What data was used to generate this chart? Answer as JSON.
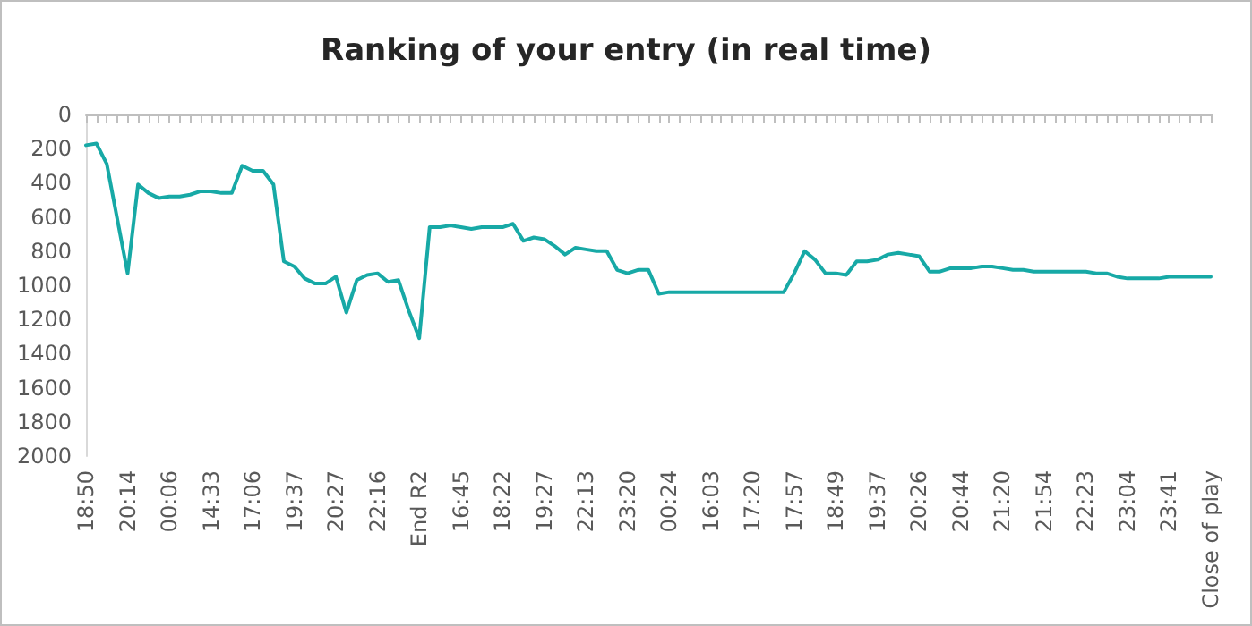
{
  "chart_data": {
    "type": "line",
    "title": "Ranking of your entry (in real time)",
    "categories": [
      "18:50",
      null,
      null,
      null,
      "20:14",
      null,
      null,
      null,
      "00:06",
      null,
      null,
      null,
      "14:33",
      null,
      null,
      null,
      "17:06",
      null,
      null,
      null,
      "19:37",
      null,
      null,
      null,
      "20:27",
      null,
      null,
      null,
      "22:16",
      null,
      null,
      null,
      "End R2",
      null,
      null,
      null,
      "16:45",
      null,
      null,
      null,
      "18:22",
      null,
      null,
      null,
      "19:27",
      null,
      null,
      null,
      "22:13",
      null,
      null,
      null,
      "23:20",
      null,
      null,
      null,
      "00:24",
      null,
      null,
      null,
      "16:03",
      null,
      null,
      null,
      "17:20",
      null,
      null,
      null,
      "17:57",
      null,
      null,
      null,
      "18:49",
      null,
      null,
      null,
      "19:37",
      null,
      null,
      null,
      "20:26",
      null,
      null,
      null,
      "20:44",
      null,
      null,
      null,
      "21:20",
      null,
      null,
      null,
      "21:54",
      null,
      null,
      null,
      "22:23",
      null,
      null,
      null,
      "23:04",
      null,
      null,
      null,
      "23:41",
      null,
      null,
      null,
      "Close of play"
    ],
    "series": [
      {
        "color": "#17a9a6",
        "values": [
          180,
          170,
          290,
          610,
          930,
          410,
          460,
          490,
          480,
          480,
          470,
          450,
          450,
          460,
          460,
          300,
          330,
          330,
          410,
          860,
          890,
          960,
          990,
          990,
          950,
          1160,
          970,
          940,
          930,
          980,
          970,
          1150,
          1310,
          660,
          660,
          650,
          660,
          670,
          660,
          660,
          660,
          640,
          740,
          720,
          730,
          770,
          820,
          780,
          790,
          800,
          800,
          910,
          930,
          910,
          910,
          1050,
          1040,
          1040,
          1040,
          1040,
          1040,
          1040,
          1040,
          1040,
          1040,
          1040,
          1040,
          1040,
          930,
          800,
          850,
          930,
          930,
          940,
          860,
          860,
          850,
          820,
          810,
          820,
          830,
          920,
          920,
          900,
          900,
          900,
          890,
          890,
          900,
          910,
          910,
          920,
          920,
          920,
          920,
          920,
          920,
          930,
          930,
          950,
          960,
          960,
          960,
          960,
          950,
          950,
          950,
          950,
          950
        ]
      }
    ],
    "ylim": [
      2000,
      0
    ],
    "yticks": [
      0,
      200,
      400,
      600,
      800,
      1000,
      1200,
      1400,
      1600,
      1800,
      2000
    ],
    "grid": false,
    "marker": "none",
    "line_style": "solid"
  }
}
